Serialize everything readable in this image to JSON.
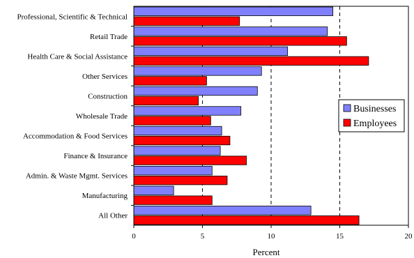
{
  "chart_data": {
    "type": "bar",
    "orientation": "horizontal",
    "title": "",
    "xlabel": "Percent",
    "ylabel": "",
    "xlim": [
      0,
      20
    ],
    "xticks": [
      0,
      5,
      10,
      15,
      20
    ],
    "vertical_gridlines": [
      5,
      10,
      15
    ],
    "legend_position": "right",
    "categories": [
      "Professional, Scientific & Technical",
      "Retail Trade",
      "Health Care & Social Assistance",
      "Other Services",
      "Construction",
      "Wholesale Trade",
      "Accommodation & Food Services",
      "Finance & Insurance",
      "Admin. & Waste Mgmt. Services",
      "Manufacturing",
      "All Other"
    ],
    "series": [
      {
        "name": "Businesses",
        "color": "#8080ff",
        "values": [
          14.5,
          14.1,
          11.2,
          9.3,
          9.0,
          7.8,
          6.4,
          6.3,
          5.7,
          2.9,
          12.9
        ]
      },
      {
        "name": "Employees",
        "color": "#ff0000",
        "values": [
          7.7,
          15.5,
          17.1,
          5.3,
          4.7,
          5.6,
          7.0,
          8.2,
          6.8,
          5.7,
          16.4
        ]
      }
    ]
  }
}
